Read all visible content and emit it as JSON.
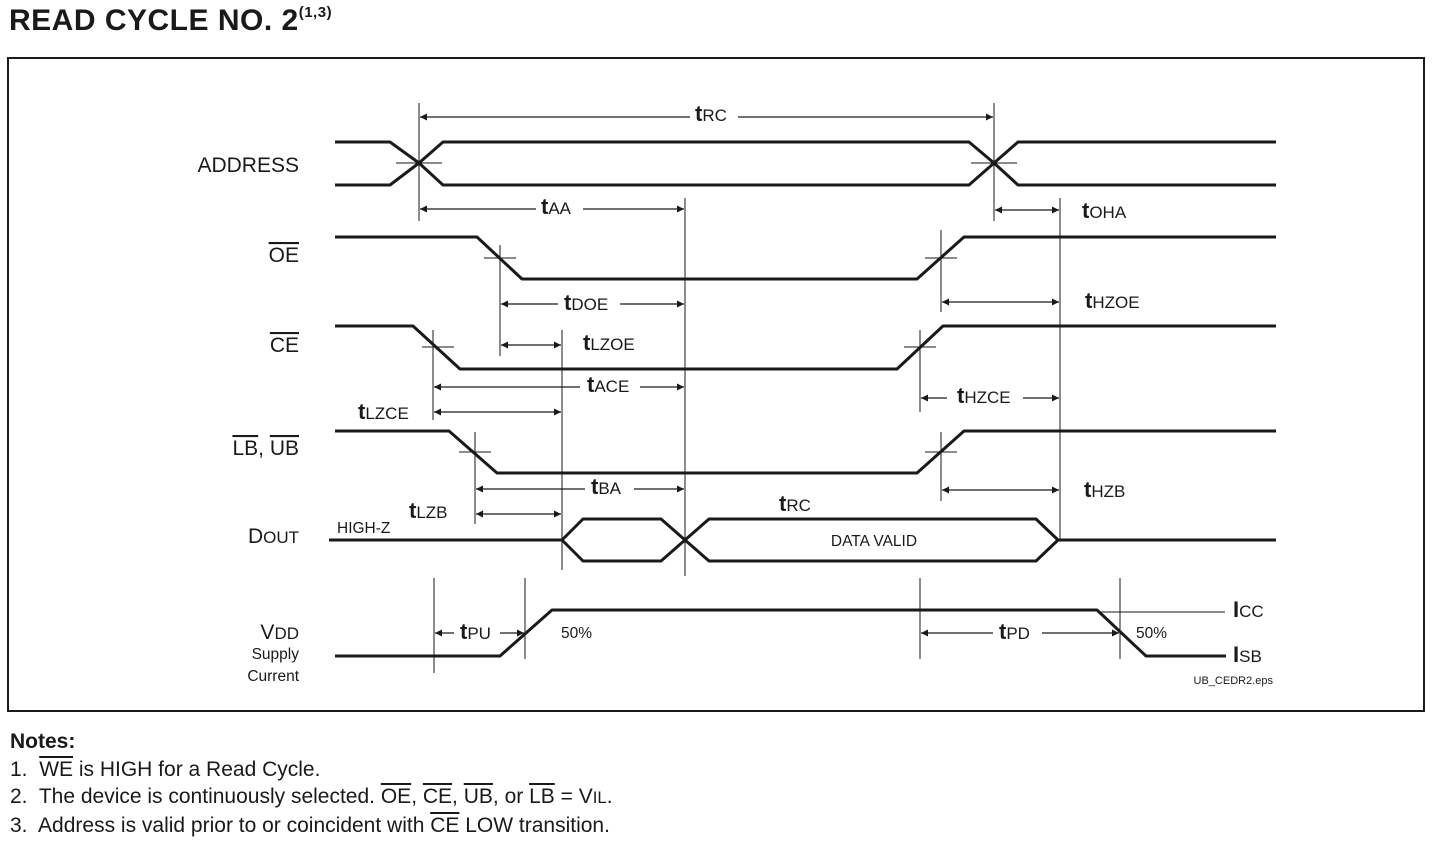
{
  "title": {
    "text": "READ CYCLE NO. 2",
    "superscript": "(1,3)"
  },
  "signals": {
    "address": "ADDRESS",
    "oe": "OE",
    "ce": "CE",
    "lb": "LB",
    "lb_ub_sep": ", ",
    "ub": "UB",
    "dout_d": "D",
    "dout_rest": "OUT",
    "vdd_v": "V",
    "vdd_rest": "DD",
    "vdd_line2": "Supply",
    "vdd_line3": "Current"
  },
  "timing": {
    "t": "t",
    "rc": "RC",
    "aa": "AA",
    "oha": "OHA",
    "doe": "DOE",
    "hzoe": "HZOE",
    "lzoe": "LZOE",
    "ace": "ACE",
    "hzce": "HZCE",
    "lzce": "LZCE",
    "ba": "BA",
    "hzb": "HZB",
    "lzb": "LZB",
    "rc2": "RC",
    "pu": "PU",
    "pd": "PD"
  },
  "annotations": {
    "high_z": "HIGH-Z",
    "data_valid": "DATA VALID",
    "pct_left": "50%",
    "pct_right": "50%",
    "icc_i": "I",
    "icc_sub": "CC",
    "isb_i": "I",
    "isb_sub": "SB",
    "file": "UB_CEDR2.eps"
  },
  "notes": {
    "header": "Notes:",
    "n1_num": "1.",
    "n1_we": "WE",
    "n1_rest": " is HIGH for a Read Cycle.",
    "n2_num": "2.",
    "n2_pre": "The device is continuously selected. ",
    "n2_oe": "OE",
    "n2_c1": ", ",
    "n2_ce": "CE",
    "n2_c2": ", ",
    "n2_ub": "UB",
    "n2_or": ", or ",
    "n2_lb": "LB",
    "n2_eq": " = V",
    "n2_il": "IL",
    "n2_end": ".",
    "n3_num": "3.",
    "n3_pre": "Address is valid prior to or coincident with ",
    "n3_ce": "CE",
    "n3_post": " LOW transition."
  }
}
